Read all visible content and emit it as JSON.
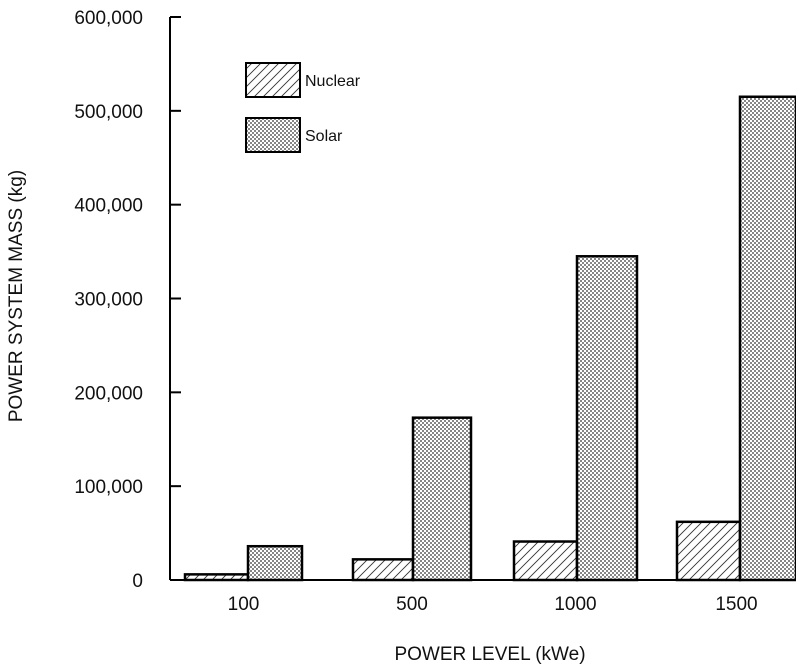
{
  "chart_data": {
    "type": "bar",
    "title": "",
    "xlabel": "POWER LEVEL (kWe)",
    "ylabel": "POWER SYSTEM MASS (kg)",
    "categories": [
      "100",
      "500",
      "1000",
      "1500"
    ],
    "series": [
      {
        "name": "Nuclear",
        "pattern": "diagonal-hatch",
        "values": [
          6000,
          22000,
          41000,
          62000
        ]
      },
      {
        "name": "Solar",
        "pattern": "dot-stipple",
        "values": [
          36000,
          173000,
          345000,
          515000
        ]
      }
    ],
    "ylim": [
      0,
      600000
    ],
    "yticks": [
      "0",
      "100,000",
      "200,000",
      "300,000",
      "400,000",
      "500,000",
      "600,000"
    ],
    "grid": false,
    "legend_position": "top-left"
  }
}
